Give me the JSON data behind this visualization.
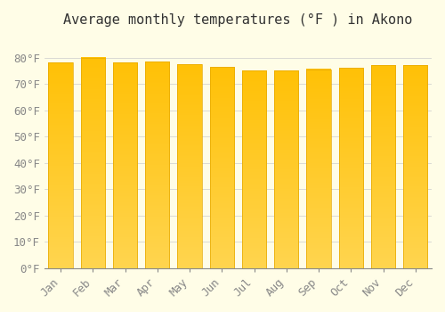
{
  "months": [
    "Jan",
    "Feb",
    "Mar",
    "Apr",
    "May",
    "Jun",
    "Jul",
    "Aug",
    "Sep",
    "Oct",
    "Nov",
    "Dec"
  ],
  "values": [
    78,
    80,
    78,
    78.5,
    77.5,
    76.5,
    75,
    75,
    75.5,
    76,
    77,
    77
  ],
  "title": "Average monthly temperatures (°F ) in Akono",
  "ylim": [
    0,
    88
  ],
  "yticks": [
    0,
    10,
    20,
    30,
    40,
    50,
    60,
    70,
    80
  ],
  "bar_color_top": "#FFC107",
  "bar_color_bottom": "#FFD54F",
  "bar_edge_color": "#E6A800",
  "background_color": "#FFFDE7",
  "grid_color": "#CCCCCC",
  "title_fontsize": 11,
  "tick_fontsize": 9,
  "font_family": "monospace"
}
